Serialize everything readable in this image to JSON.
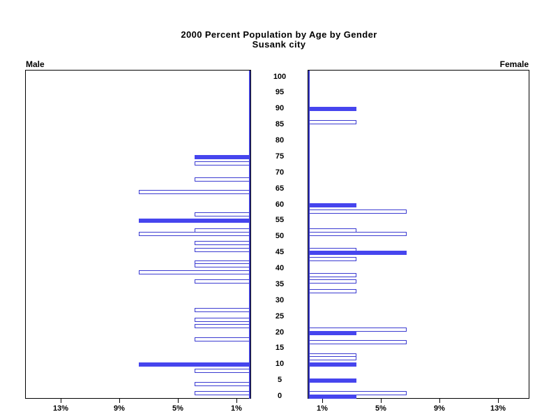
{
  "title_line1": "2000 Percent Population by Age by Gender",
  "title_line2": "Susank city",
  "colors": {
    "bar_fill": "#4645EE",
    "bar_outline": "#3B3BD1",
    "axis_spine": "#3B3BD1",
    "frame": "#000000",
    "text": "#000000",
    "background": "#FFFFFF"
  },
  "chart_data": {
    "type": "bar",
    "variant": "population-pyramid",
    "title": "2000 Percent Population by Age by Gender",
    "subtitle": "Susank city",
    "age_axis": {
      "min": 0,
      "max": 100,
      "step": 5,
      "labels_position": "center"
    },
    "pct_axis": {
      "ticks": [
        1,
        5,
        9,
        13
      ],
      "unit": "%",
      "min": 0,
      "max": 15.4
    },
    "style_note": "bars at ages divisible by 5 are solid, others hollow",
    "series": [
      {
        "name": "Male",
        "side": "left",
        "bars": [
          {
            "age": 75,
            "pct": 3.8,
            "filled": true
          },
          {
            "age": 73,
            "pct": 3.8,
            "filled": false
          },
          {
            "age": 68,
            "pct": 3.8,
            "filled": false
          },
          {
            "age": 64,
            "pct": 7.6,
            "filled": false
          },
          {
            "age": 57,
            "pct": 3.8,
            "filled": false
          },
          {
            "age": 55,
            "pct": 7.6,
            "filled": true
          },
          {
            "age": 52,
            "pct": 3.8,
            "filled": false
          },
          {
            "age": 51,
            "pct": 7.6,
            "filled": false
          },
          {
            "age": 48,
            "pct": 3.8,
            "filled": false
          },
          {
            "age": 46,
            "pct": 3.8,
            "filled": false
          },
          {
            "age": 42,
            "pct": 3.8,
            "filled": false
          },
          {
            "age": 41,
            "pct": 3.8,
            "filled": false
          },
          {
            "age": 39,
            "pct": 7.6,
            "filled": false
          },
          {
            "age": 36,
            "pct": 3.8,
            "filled": false
          },
          {
            "age": 27,
            "pct": 3.8,
            "filled": false
          },
          {
            "age": 24,
            "pct": 3.8,
            "filled": false
          },
          {
            "age": 22,
            "pct": 3.8,
            "filled": false
          },
          {
            "age": 18,
            "pct": 3.8,
            "filled": false
          },
          {
            "age": 10,
            "pct": 7.6,
            "filled": true
          },
          {
            "age": 8,
            "pct": 3.8,
            "filled": false
          },
          {
            "age": 4,
            "pct": 3.8,
            "filled": false
          },
          {
            "age": 1,
            "pct": 3.8,
            "filled": false
          }
        ]
      },
      {
        "name": "Female",
        "side": "right",
        "bars": [
          {
            "age": 90,
            "pct": 3.3,
            "filled": true
          },
          {
            "age": 86,
            "pct": 3.3,
            "filled": false
          },
          {
            "age": 60,
            "pct": 3.3,
            "filled": true
          },
          {
            "age": 58,
            "pct": 6.7,
            "filled": false
          },
          {
            "age": 52,
            "pct": 3.3,
            "filled": false
          },
          {
            "age": 51,
            "pct": 6.7,
            "filled": false
          },
          {
            "age": 46,
            "pct": 3.3,
            "filled": false
          },
          {
            "age": 45,
            "pct": 6.7,
            "filled": true
          },
          {
            "age": 43,
            "pct": 3.3,
            "filled": false
          },
          {
            "age": 38,
            "pct": 3.3,
            "filled": false
          },
          {
            "age": 36,
            "pct": 3.3,
            "filled": false
          },
          {
            "age": 33,
            "pct": 3.3,
            "filled": false
          },
          {
            "age": 21,
            "pct": 6.7,
            "filled": false
          },
          {
            "age": 20,
            "pct": 3.3,
            "filled": true
          },
          {
            "age": 17,
            "pct": 6.7,
            "filled": false
          },
          {
            "age": 13,
            "pct": 3.3,
            "filled": false
          },
          {
            "age": 12,
            "pct": 3.3,
            "filled": false
          },
          {
            "age": 10,
            "pct": 3.3,
            "filled": true
          },
          {
            "age": 5,
            "pct": 3.3,
            "filled": true
          },
          {
            "age": 1,
            "pct": 6.7,
            "filled": false
          },
          {
            "age": 0,
            "pct": 3.3,
            "filled": true
          }
        ]
      }
    ]
  }
}
